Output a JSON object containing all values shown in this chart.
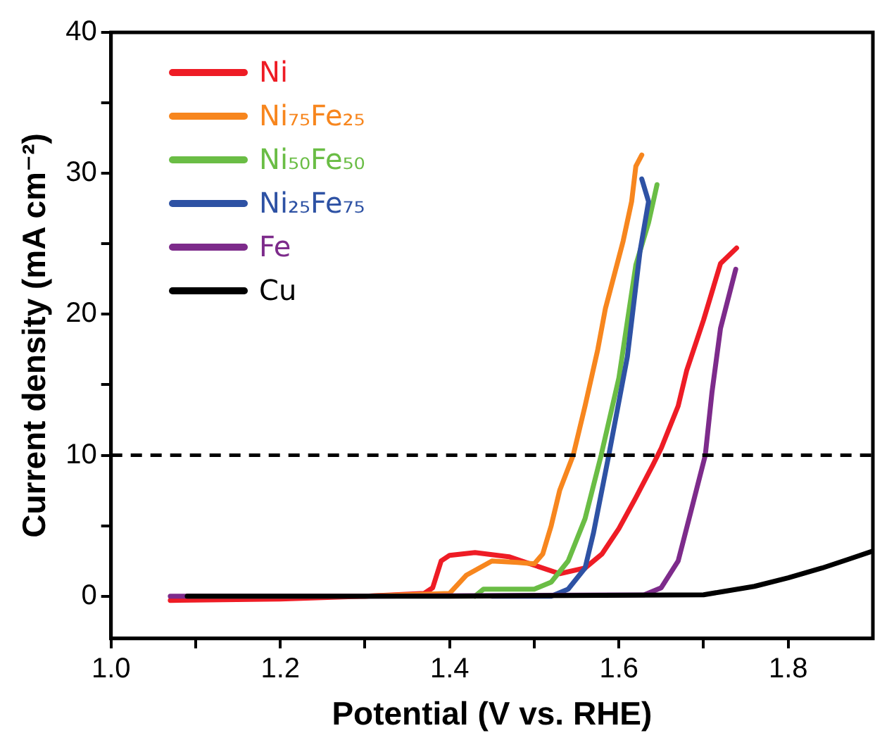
{
  "chart_data": {
    "type": "line",
    "xlabel": "Potential (V vs. RHE)",
    "ylabel": "Current density (mA cm⁻²)",
    "xlim": [
      1.0,
      1.9
    ],
    "ylim": [
      -3,
      40
    ],
    "xticks": [
      {
        "value": 1.0,
        "label": "1.0"
      },
      {
        "value": 1.1,
        "label": null
      },
      {
        "value": 1.2,
        "label": "1.2"
      },
      {
        "value": 1.3,
        "label": null
      },
      {
        "value": 1.4,
        "label": "1.4"
      },
      {
        "value": 1.5,
        "label": null
      },
      {
        "value": 1.6,
        "label": "1.6"
      },
      {
        "value": 1.7,
        "label": null
      },
      {
        "value": 1.8,
        "label": "1.8"
      }
    ],
    "yticks": [
      0,
      {
        "value": 5,
        "label": null
      },
      10,
      {
        "value": 15,
        "label": null
      },
      20,
      {
        "value": 25,
        "label": null
      },
      30,
      {
        "value": 35,
        "label": null
      },
      40
    ],
    "grid": false,
    "legend": "top left",
    "marker": "none",
    "line_style": "solid",
    "ref_lines": [
      {
        "axis": "y",
        "value": 10,
        "color": "#000000",
        "line_style": "dashed"
      }
    ],
    "series": [
      {
        "name": "Ni",
        "color": "#ee1c25",
        "x": [
          1.07,
          1.2,
          1.3,
          1.37,
          1.38,
          1.39,
          1.4,
          1.43,
          1.47,
          1.5,
          1.53,
          1.56,
          1.58,
          1.6,
          1.62,
          1.64,
          1.65,
          1.67,
          1.68,
          1.7,
          1.72,
          1.739
        ],
        "values": [
          -0.3,
          -0.2,
          0,
          0.2,
          0.6,
          2.5,
          2.9,
          3.1,
          2.8,
          2.2,
          1.6,
          2.0,
          3.0,
          4.8,
          7.0,
          9.3,
          10.5,
          13.5,
          16,
          19.6,
          23.6,
          24.7
        ]
      },
      {
        "name": "Ni₇₅Fe₂₅",
        "color": "#f7861e",
        "x": [
          1.09,
          1.3,
          1.4,
          1.42,
          1.45,
          1.48,
          1.5,
          1.51,
          1.52,
          1.53,
          1.546,
          1.56,
          1.575,
          1.584,
          1.605,
          1.615,
          1.62,
          1.627
        ],
        "values": [
          0,
          0,
          0.2,
          1.5,
          2.5,
          2.4,
          2.3,
          3.0,
          5.0,
          7.5,
          10,
          13.5,
          17.5,
          20.4,
          25.2,
          28,
          30.5,
          31.3
        ]
      },
      {
        "name": "Ni₅₀Fe₅₀",
        "color": "#6abd45",
        "x": [
          1.43,
          1.44,
          1.5,
          1.52,
          1.54,
          1.56,
          1.579,
          1.6,
          1.61,
          1.62,
          1.635,
          1.645
        ],
        "values": [
          0,
          0.5,
          0.5,
          1.0,
          2.5,
          5.5,
          10,
          15.5,
          19.5,
          23.5,
          26.5,
          29.2
        ]
      },
      {
        "name": "Ni₂₅Fe₇₅",
        "color": "#2e52a4",
        "x": [
          1.45,
          1.52,
          1.54,
          1.56,
          1.57,
          1.588,
          1.61,
          1.615,
          1.62,
          1.625,
          1.635,
          1.627
        ],
        "values": [
          0,
          0,
          0.5,
          2.0,
          4.5,
          10,
          17,
          19.5,
          22,
          24.5,
          28,
          29.6
        ]
      },
      {
        "name": "Fe",
        "color": "#7d2b8b",
        "x": [
          1.07,
          1.3,
          1.63,
          1.65,
          1.67,
          1.685,
          1.702,
          1.71,
          1.72,
          1.735,
          1.738
        ],
        "values": [
          0,
          0,
          0.1,
          0.6,
          2.5,
          6,
          10,
          14.5,
          19,
          22.5,
          23.2
        ]
      },
      {
        "name": "Cu",
        "color": "#000000",
        "x": [
          1.09,
          1.4,
          1.7,
          1.72,
          1.76,
          1.8,
          1.84,
          1.87,
          1.9
        ],
        "values": [
          0,
          0,
          0.1,
          0.3,
          0.7,
          1.3,
          2.0,
          2.6,
          3.2
        ]
      }
    ]
  }
}
